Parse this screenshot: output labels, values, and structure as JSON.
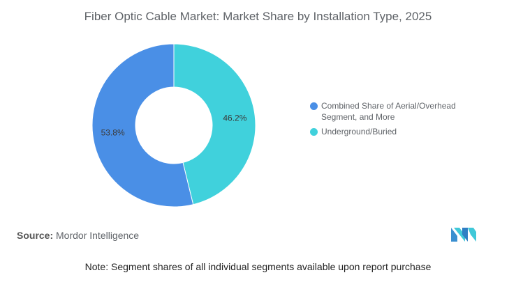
{
  "chart_data": {
    "type": "pie",
    "title": "Fiber Optic Cable Market: Market Share by Installation Type, 2025",
    "donut": true,
    "slices": [
      {
        "name": "Underground/Buried",
        "value": 46.2,
        "label": "46.2%",
        "color": "#40d1dc"
      },
      {
        "name": "Combined Share of Aerial/Overhead Segment, and More",
        "value": 53.8,
        "label": "53.8%",
        "color": "#4a8fe6"
      }
    ],
    "legend_position": "right"
  },
  "legend": [
    {
      "label": "Combined Share of Aerial/Overhead Segment, and More",
      "color": "#4a8fe6"
    },
    {
      "label": "Underground/Buried",
      "color": "#40d1dc"
    }
  ],
  "footer": {
    "source_label": "Source:",
    "source_value": "Mordor Intelligence",
    "note": "Note: Segment shares of all individual segments available upon report purchase",
    "logo_icon": "mordor-intelligence-logo-icon"
  }
}
